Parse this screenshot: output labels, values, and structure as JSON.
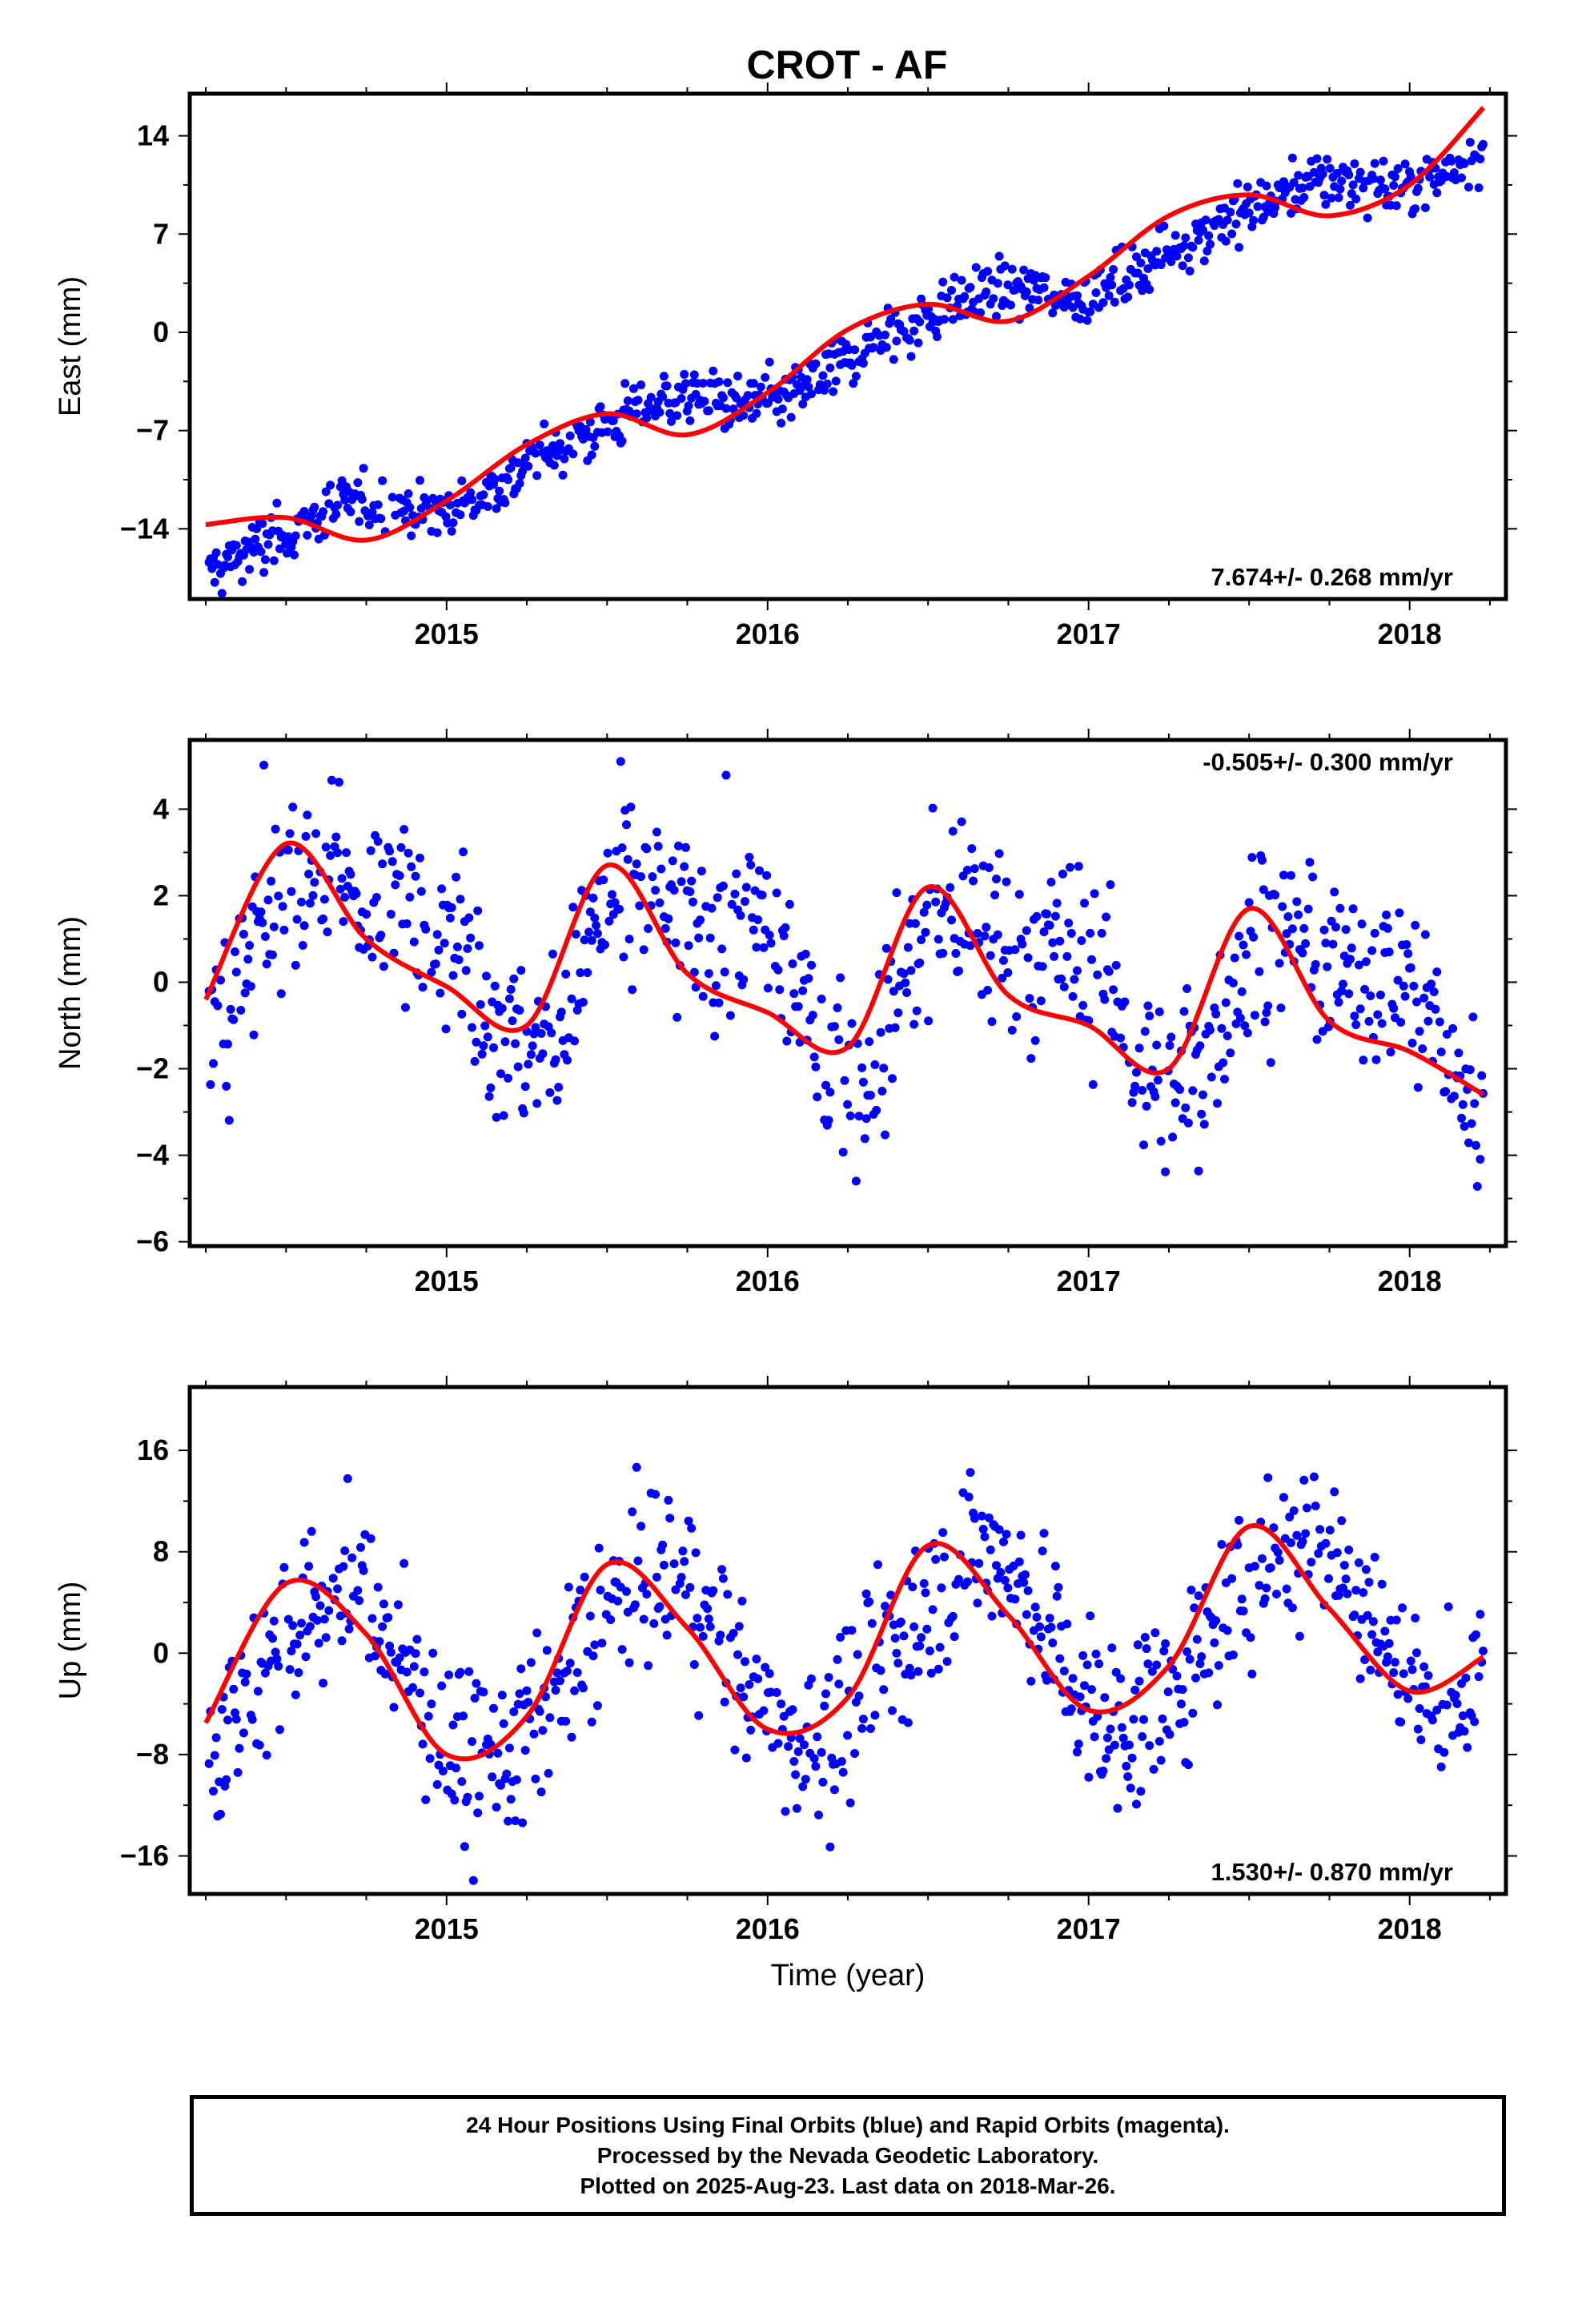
{
  "title": "CROT - AF",
  "caption": {
    "lines": [
      "24 Hour Positions Using Final Orbits (blue) and Rapid Orbits (magenta).",
      "Processed by the Nevada Geodetic Laboratory.",
      "Plotted on 2025-Aug-23. Last data on 2018-Mar-26."
    ]
  },
  "colors": {
    "points": "#0000ff",
    "fit": "#ff0000",
    "frame": "#000000"
  },
  "chart_data": [
    {
      "type": "scatter",
      "ylabel": "East (mm)",
      "xlabel": "",
      "rate_label": "7.674+/- 0.268 mm/yr",
      "rate_position": "bottom-right",
      "xlim": [
        2014.2,
        2018.3
      ],
      "ylim": [
        -19,
        17
      ],
      "xticks": [
        "2015",
        "2016",
        "2017",
        "2018"
      ],
      "yticks": [
        "14",
        "7",
        "0",
        "-7",
        "-14"
      ],
      "fit_model": {
        "offset": -2.0,
        "rate": 7.674,
        "t0": 2016.2,
        "ann_cos": -0.9,
        "ann_sin": 0.9,
        "semi_cos": 0.3,
        "semi_sin": 0.2
      },
      "noise_mm": 1.0,
      "fit_line": {
        "x": [
          2014.25,
          2014.5,
          2014.75,
          2015.0,
          2015.25,
          2015.5,
          2015.75,
          2016.0,
          2016.25,
          2016.5,
          2016.75,
          2017.0,
          2017.25,
          2017.5,
          2017.75,
          2018.0,
          2018.23
        ],
        "y": [
          -13.7,
          -13.2,
          -14.8,
          -12.0,
          -8.0,
          -5.8,
          -7.3,
          -4.3,
          0.2,
          2.0,
          0.8,
          4.0,
          8.3,
          9.8,
          8.3,
          10.5,
          16.0
        ]
      }
    },
    {
      "type": "scatter",
      "ylabel": "North (mm)",
      "xlabel": "",
      "rate_label": "-0.505+/- 0.300 mm/yr",
      "rate_position": "top-right",
      "xlim": [
        2014.2,
        2018.3
      ],
      "ylim": [
        -6.1,
        5.6
      ],
      "xticks": [
        "2015",
        "2016",
        "2017",
        "2018"
      ],
      "yticks": [
        "4",
        "2",
        "0",
        "-2",
        "-4",
        "-6"
      ],
      "fit_model": {
        "offset": 0.3,
        "rate": -0.505,
        "t0": 2016.2,
        "ann_cos": -1.6,
        "ann_sin": -0.3,
        "semi_cos": -0.6,
        "semi_sin": -0.6
      },
      "noise_mm": 1.1,
      "fit_line": {
        "x": [
          2014.25,
          2014.5,
          2014.75,
          2015.0,
          2015.25,
          2015.5,
          2015.75,
          2016.0,
          2016.25,
          2016.5,
          2016.75,
          2017.0,
          2017.25,
          2017.5,
          2017.75,
          2018.0,
          2018.23
        ],
        "y": [
          -0.4,
          3.2,
          1.0,
          -0.1,
          -1.0,
          2.7,
          0.2,
          -0.7,
          -1.5,
          2.2,
          -0.3,
          -1.0,
          -2.0,
          1.7,
          -0.9,
          -1.6,
          -2.6
        ]
      }
    },
    {
      "type": "scatter",
      "ylabel": "Up (mm)",
      "xlabel": "Time (year)",
      "rate_label": "1.530+/- 0.870 mm/yr",
      "rate_position": "bottom-right",
      "xlim": [
        2014.2,
        2018.3
      ],
      "ylim": [
        -19,
        21
      ],
      "xticks": [
        "2015",
        "2016",
        "2017",
        "2018"
      ],
      "yticks": [
        "16",
        "8",
        "0",
        "-8",
        "-16"
      ],
      "fit_model": {
        "offset": 0.0,
        "rate": 1.53,
        "t0": 2016.2,
        "ann_cos": -6.5,
        "ann_sin": 2.5,
        "semi_cos": 0.5,
        "semi_sin": 0.5
      },
      "noise_mm": 3.5,
      "fit_line": {
        "x": [
          2014.25,
          2014.5,
          2014.75,
          2015.0,
          2015.25,
          2015.5,
          2015.75,
          2016.0,
          2016.25,
          2016.5,
          2016.75,
          2017.0,
          2017.25,
          2017.5,
          2017.75,
          2018.0,
          2018.23
        ],
        "y": [
          -5.5,
          5.5,
          1.5,
          -8.0,
          -5.0,
          7.0,
          2.0,
          -6.0,
          -3.5,
          8.5,
          3.0,
          -4.5,
          -1.0,
          10.0,
          3.5,
          -3.0,
          -0.3
        ]
      }
    }
  ]
}
